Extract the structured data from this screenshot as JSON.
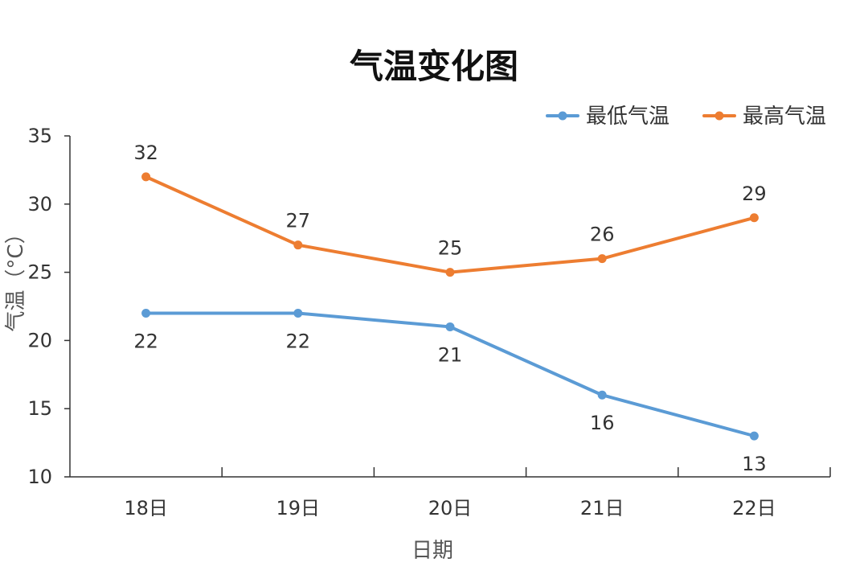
{
  "chart_data": {
    "type": "line",
    "title": "气温变化图",
    "xlabel": "日期",
    "ylabel": "气温（°C）",
    "categories": [
      "18日",
      "19日",
      "20日",
      "21日",
      "22日"
    ],
    "ylim": [
      10,
      35
    ],
    "yticks": [
      10,
      15,
      20,
      25,
      30,
      35
    ],
    "grid": false,
    "legend_position": "top-right",
    "series": [
      {
        "name": "最低气温",
        "color": "#5B9BD5",
        "values": [
          22,
          22,
          21,
          16,
          13
        ],
        "label_position": "below"
      },
      {
        "name": "最高气温",
        "color": "#ED7D31",
        "values": [
          32,
          27,
          25,
          26,
          29
        ],
        "label_position": "above"
      }
    ]
  }
}
